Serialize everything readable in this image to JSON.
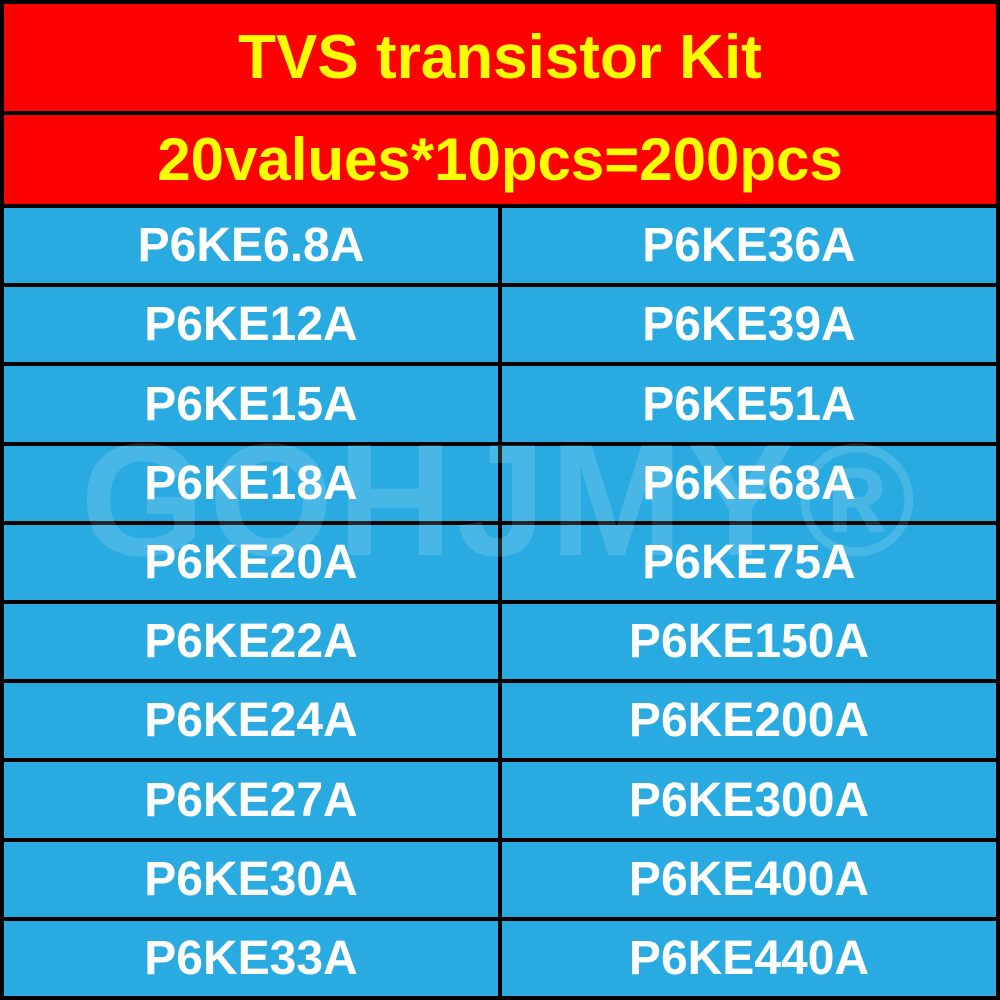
{
  "header": {
    "title": "TVS transistor Kit",
    "subtitle": "20values*10pcs=200pcs"
  },
  "table": {
    "type": "table",
    "columns": 2,
    "rows": [
      [
        "P6KE6.8A",
        "P6KE36A"
      ],
      [
        "P6KE12A",
        "P6KE39A"
      ],
      [
        "P6KE15A",
        "P6KE51A"
      ],
      [
        "P6KE18A",
        "P6KE68A"
      ],
      [
        "P6KE20A",
        "P6KE75A"
      ],
      [
        "P6KE22A",
        "P6KE150A"
      ],
      [
        "P6KE24A",
        "P6KE200A"
      ],
      [
        "P6KE27A",
        "P6KE300A"
      ],
      [
        "P6KE30A",
        "P6KE400A"
      ],
      [
        "P6KE33A",
        "P6KE440A"
      ]
    ],
    "header_bg_color": "#ff0000",
    "header_text_color": "#ffff00",
    "cell_bg_color": "#29abe2",
    "cell_text_color": "#ffffff",
    "border_color": "#000000",
    "border_width": 4,
    "title_fontsize": 62,
    "subtitle_fontsize": 60,
    "cell_fontsize": 48,
    "font_weight": "bold"
  },
  "watermark": {
    "text": "GOHJMY®",
    "color": "rgba(255, 255, 255, 0.15)",
    "fontsize": 160
  }
}
